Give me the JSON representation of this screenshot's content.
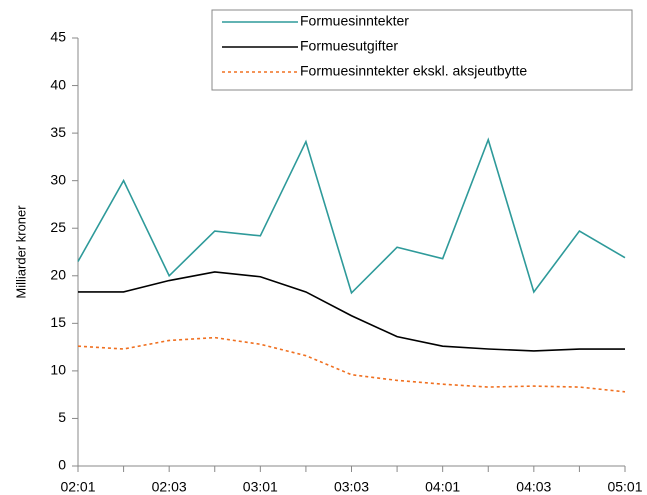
{
  "chart_data": {
    "type": "line",
    "ylabel": "Milliarder kroner",
    "categories": [
      "02:01",
      null,
      "02:03",
      null,
      "03:01",
      null,
      "03:03",
      null,
      "04:01",
      null,
      "04:03",
      null,
      "05:01"
    ],
    "series": [
      {
        "name": "Formuesinntekter",
        "color": "#2e9a9a",
        "line_style": "solid",
        "values": [
          21.5,
          30,
          20,
          24.7,
          24.2,
          34.1,
          18.2,
          23,
          21.8,
          34.3,
          18.3,
          24.7,
          21.9
        ]
      },
      {
        "name": "Formuesutgifter",
        "color": "#000000",
        "line_style": "solid",
        "values": [
          18.3,
          18.3,
          19.5,
          20.4,
          19.9,
          18.3,
          15.8,
          13.6,
          12.6,
          12.3,
          12.1,
          12.3,
          12.3
        ]
      },
      {
        "name": "Formuesinntekter ekskl. aksjeutbytte",
        "color": "#f07020",
        "line_style": "dashed",
        "values": [
          12.6,
          12.3,
          13.2,
          13.5,
          12.8,
          11.6,
          9.6,
          9,
          8.6,
          8.3,
          8.4,
          8.3,
          7.8
        ]
      }
    ],
    "ylim": [
      0,
      45
    ],
    "yticks": [
      0,
      5,
      10,
      15,
      20,
      25,
      30,
      35,
      40,
      45
    ],
    "grid": false
  }
}
